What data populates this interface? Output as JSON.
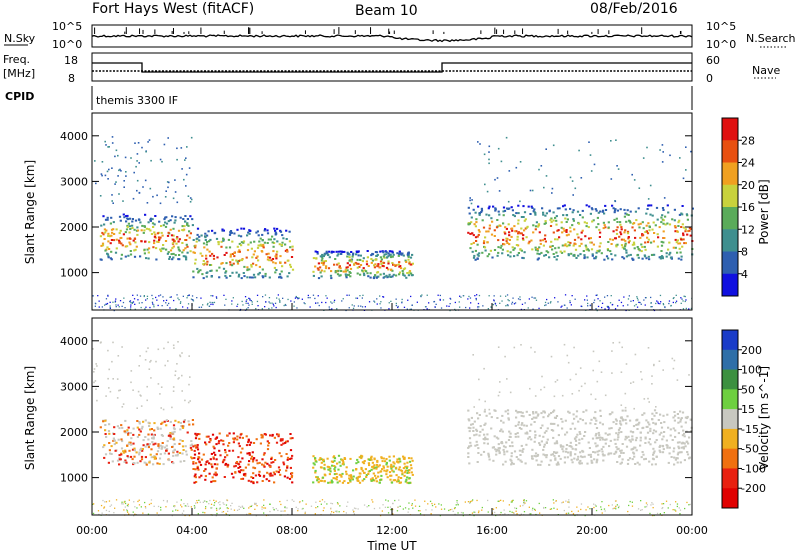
{
  "header": {
    "station": "Fort Hays West (fitACF)",
    "beam": "Beam 10",
    "date": "08/Feb/2016"
  },
  "noise_panel": {
    "left_label": "N.Sky",
    "right_label": "N.Search",
    "left_ticks": [
      "10^5",
      "10^0"
    ],
    "right_ticks": [
      "10^5",
      "10^0"
    ]
  },
  "freq_panel": {
    "left_label_1": "Freq.",
    "left_label_2": "[MHz]",
    "right_label": "Nave",
    "left_ticks": [
      "18",
      "8"
    ],
    "right_ticks": [
      "60",
      "0"
    ]
  },
  "cpid_panel": {
    "label": "CPID",
    "text": "themis 3300 IF"
  },
  "chart_data": [
    {
      "type": "heatmap",
      "quantity": "Power",
      "ylabel": "Slant Range [km]",
      "ylim": [
        180,
        4500
      ],
      "yticks": [
        "1000",
        "2000",
        "3000",
        "4000"
      ],
      "xlim": [
        "00:00",
        "24:00"
      ],
      "colorbar_label": "Power [dB]",
      "colorbar_ticks": [
        "4",
        "8",
        "12",
        "16",
        "20",
        "24",
        "28"
      ],
      "colorbar_colors": [
        "#1010e0",
        "#2e5fb0",
        "#3f8f8f",
        "#5aab5a",
        "#c8d23c",
        "#f0a020",
        "#e85010",
        "#e01010"
      ],
      "echo_regions": [
        {
          "t_start": 0.3,
          "t_end": 4.0,
          "range_low": 1300,
          "range_high": 2300
        },
        {
          "t_start": 4.0,
          "t_end": 8.0,
          "range_low": 900,
          "range_high": 2000
        },
        {
          "t_start": 8.8,
          "t_end": 12.8,
          "range_low": 900,
          "range_high": 1500
        },
        {
          "t_start": 15.0,
          "t_end": 24.0,
          "range_low": 1300,
          "range_high": 2500
        }
      ]
    },
    {
      "type": "heatmap",
      "quantity": "Velocity",
      "ylabel": "Slant Range [km]",
      "ylim": [
        180,
        4500
      ],
      "yticks": [
        "1000",
        "2000",
        "3000",
        "4000"
      ],
      "xlim": [
        "00:00",
        "24:00"
      ],
      "xticks": [
        "00:00",
        "04:00",
        "08:00",
        "12:00",
        "16:00",
        "20:00",
        "00:00"
      ],
      "xlabel": "Time UT",
      "colorbar_label": "Velocity [m s^-1]",
      "colorbar_ticks": [
        "200",
        "100",
        "50",
        "15",
        "-15",
        "-50",
        "-100",
        "-200"
      ],
      "colorbar_colors": [
        "#1a3cc8",
        "#2f6fa8",
        "#3c9040",
        "#6ed040",
        "#c8c8c0",
        "#f0b020",
        "#f07010",
        "#e82010",
        "#e00000"
      ]
    }
  ]
}
